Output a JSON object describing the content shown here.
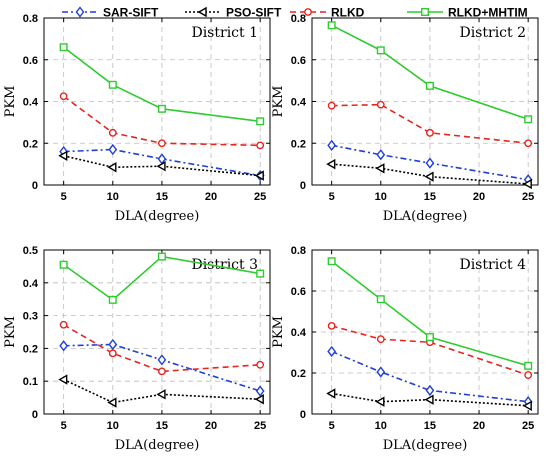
{
  "legend": [
    {
      "name": "SAR-SIFT",
      "color": "#1f3fd6",
      "dash": "6 3 2 3",
      "marker": "diamond"
    },
    {
      "name": "PSO-SIFT",
      "color": "#000000",
      "dash": "2 2",
      "marker": "triangle-left"
    },
    {
      "name": "RLKD",
      "color": "#e8241e",
      "dash": "6 4",
      "marker": "circle"
    },
    {
      "name": "RLKD+MHTIM",
      "color": "#2ecc2e",
      "dash": "",
      "marker": "square"
    }
  ],
  "chart_data": [
    {
      "type": "line",
      "title": "District 1",
      "xlabel": "DLA(degree)",
      "ylabel": "PKM",
      "x": [
        5,
        10,
        15,
        20,
        25
      ],
      "xlim": [
        3,
        26
      ],
      "ylim": [
        0,
        0.8
      ],
      "yticks": [
        0,
        0.2,
        0.4,
        0.6,
        0.8
      ],
      "grid": true,
      "series": [
        {
          "name": "SAR-SIFT",
          "x": [
            5,
            10,
            15,
            25
          ],
          "values": [
            0.16,
            0.17,
            0.125,
            0.045
          ]
        },
        {
          "name": "PSO-SIFT",
          "x": [
            5,
            10,
            15,
            25
          ],
          "values": [
            0.14,
            0.085,
            0.09,
            0.045
          ]
        },
        {
          "name": "RLKD",
          "x": [
            5,
            10,
            15,
            25
          ],
          "values": [
            0.425,
            0.25,
            0.2,
            0.19
          ]
        },
        {
          "name": "RLKD+MHTIM",
          "x": [
            5,
            10,
            15,
            25
          ],
          "values": [
            0.66,
            0.48,
            0.365,
            0.305
          ]
        }
      ]
    },
    {
      "type": "line",
      "title": "District 2",
      "xlabel": "DLA(degree)",
      "ylabel": "PKM",
      "x": [
        5,
        10,
        15,
        20,
        25
      ],
      "xlim": [
        3,
        26
      ],
      "ylim": [
        0,
        0.8
      ],
      "yticks": [
        0,
        0.2,
        0.4,
        0.6,
        0.8
      ],
      "grid": true,
      "series": [
        {
          "name": "SAR-SIFT",
          "x": [
            5,
            10,
            15,
            25
          ],
          "values": [
            0.19,
            0.145,
            0.105,
            0.025
          ]
        },
        {
          "name": "PSO-SIFT",
          "x": [
            5,
            10,
            15,
            25
          ],
          "values": [
            0.1,
            0.08,
            0.04,
            0.005
          ]
        },
        {
          "name": "RLKD",
          "x": [
            5,
            10,
            15,
            25
          ],
          "values": [
            0.38,
            0.385,
            0.25,
            0.2
          ]
        },
        {
          "name": "RLKD+MHTIM",
          "x": [
            5,
            10,
            15,
            25
          ],
          "values": [
            0.765,
            0.645,
            0.475,
            0.315
          ]
        }
      ]
    },
    {
      "type": "line",
      "title": "District 3",
      "xlabel": "DLA(degree)",
      "ylabel": "PKM",
      "x": [
        5,
        10,
        15,
        20,
        25
      ],
      "xlim": [
        3,
        26
      ],
      "ylim": [
        0,
        0.5
      ],
      "yticks": [
        0,
        0.1,
        0.2,
        0.3,
        0.4,
        0.5
      ],
      "grid": true,
      "series": [
        {
          "name": "SAR-SIFT",
          "x": [
            5,
            10,
            15,
            25
          ],
          "values": [
            0.208,
            0.212,
            0.165,
            0.07
          ]
        },
        {
          "name": "PSO-SIFT",
          "x": [
            5,
            10,
            15,
            25
          ],
          "values": [
            0.105,
            0.035,
            0.06,
            0.045
          ]
        },
        {
          "name": "RLKD",
          "x": [
            5,
            10,
            15,
            25
          ],
          "values": [
            0.272,
            0.185,
            0.13,
            0.15
          ]
        },
        {
          "name": "RLKD+MHTIM",
          "x": [
            5,
            10,
            15,
            25
          ],
          "values": [
            0.455,
            0.348,
            0.48,
            0.428
          ]
        }
      ]
    },
    {
      "type": "line",
      "title": "District 4",
      "xlabel": "DLA(degree)",
      "ylabel": "PKM",
      "x": [
        5,
        10,
        15,
        20,
        25
      ],
      "xlim": [
        3,
        26
      ],
      "ylim": [
        0,
        0.8
      ],
      "yticks": [
        0,
        0.2,
        0.4,
        0.6,
        0.8
      ],
      "grid": true,
      "series": [
        {
          "name": "SAR-SIFT",
          "x": [
            5,
            10,
            15,
            25
          ],
          "values": [
            0.305,
            0.205,
            0.115,
            0.06
          ]
        },
        {
          "name": "PSO-SIFT",
          "x": [
            5,
            10,
            15,
            25
          ],
          "values": [
            0.1,
            0.06,
            0.07,
            0.04
          ]
        },
        {
          "name": "RLKD",
          "x": [
            5,
            10,
            15,
            25
          ],
          "values": [
            0.43,
            0.365,
            0.35,
            0.19
          ]
        },
        {
          "name": "RLKD+MHTIM",
          "x": [
            5,
            10,
            15,
            25
          ],
          "values": [
            0.745,
            0.56,
            0.375,
            0.235
          ]
        }
      ]
    }
  ]
}
